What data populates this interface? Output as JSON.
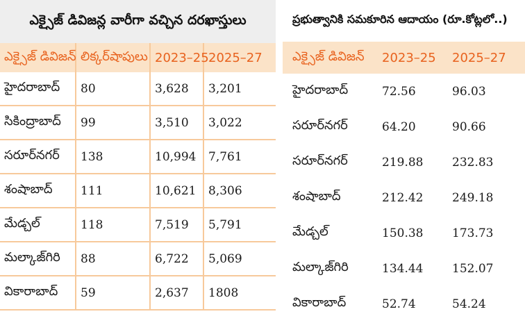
{
  "left": {
    "title": "ఎక్సైజ్ డివిజన్ల వారీగా వచ్చిన దరఖాస్తులు",
    "headers": [
      "ఎక్సైజ్ డివిజన్",
      "లిక్కర్‌షాపులు",
      "2023–25",
      "2025–27"
    ],
    "rows": [
      [
        "హైదరాబాద్",
        "80",
        "3,628",
        "3,201"
      ],
      [
        "సికింద్రాబాద్",
        "99",
        "3,510",
        "3,022"
      ],
      [
        "సరూర్‌నగర్",
        "138",
        "10,994",
        "7,761"
      ],
      [
        "శంషాబాద్",
        "111",
        "10,621",
        "8,306"
      ],
      [
        "మేడ్చల్",
        "118",
        "7,519",
        "5,791"
      ],
      [
        "మల్కాజ్‌గిరి",
        "88",
        "6,722",
        "5,069"
      ],
      [
        "వికారాబాద్",
        "59",
        "2,637",
        "1808"
      ]
    ]
  },
  "right": {
    "title": "ప్రభుత్వానికి సమకూరిన ఆదాయం (రూ.కోట్లలో..)",
    "headers": [
      "ఎక్సైజ్ డివిజన్",
      "2023–25",
      "2025–27"
    ],
    "rows": [
      [
        "హైదరాబాద్",
        "72.56",
        "96.03"
      ],
      [
        "సరూర్‌నగర్",
        "64.20",
        "90.66"
      ],
      [
        "సరూర్‌నగర్",
        "219.88",
        "232.83"
      ],
      [
        "శంషాబాద్",
        "212.42",
        "249.18"
      ],
      [
        "మేడ్చల్",
        "150.38",
        "173.73"
      ],
      [
        "మల్కాజ్‌గిరి",
        "134.44",
        "152.07"
      ],
      [
        "వికారాబాద్",
        "52.74",
        "54.24"
      ]
    ]
  },
  "colors": {
    "header_bg": "#fbe3c8",
    "header_text": "#e8621e",
    "grid": "#f7c99b",
    "title_bg": "#eeeeee"
  }
}
